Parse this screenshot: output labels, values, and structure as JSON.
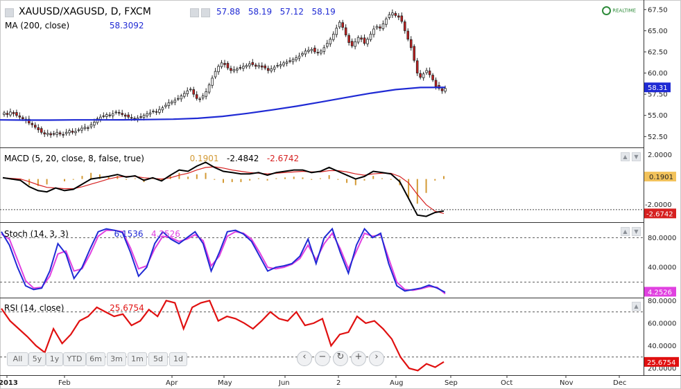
{
  "header": {
    "symbol": "XAUUSD/XAGUSD, D, FXCM",
    "ohlc": [
      "57.88",
      "58.19",
      "57.12",
      "58.19"
    ],
    "ma_label": "MA (200, close)",
    "ma_value": "58.3092",
    "realtime": "REALTIME"
  },
  "macd": {
    "label": "MACD (5, 20, close, 8, false, true)",
    "hist": "0.1901",
    "macd": "-2.4842",
    "signal": "-2.6742"
  },
  "stoch": {
    "label": "Stoch (14, 3, 3)",
    "k": "6.1536",
    "d": "4.2526"
  },
  "rsi": {
    "label": "RSI (14, close)",
    "value": "25.6754"
  },
  "range_buttons": [
    "All",
    "5y",
    "1y",
    "YTD",
    "6m",
    "3m",
    "1m",
    "5d",
    "1d"
  ],
  "nav_buttons": [
    "‹",
    "−",
    "↻",
    "+",
    "›"
  ],
  "colors": {
    "candle_up": "#ffffff",
    "candle_down": "#cc2020",
    "ma": "#1f2ad4",
    "macd": "#000000",
    "signal": "#d62020",
    "hist": "#d39a35",
    "stoch_k": "#1f2ad4",
    "stoch_d": "#e040e0",
    "rsi": "#e01010"
  },
  "chart_data": {
    "type": "candlestick",
    "price_axis": {
      "ticks": [
        "67.50",
        "65.00",
        "62.50",
        "60.00",
        "57.50",
        "55.00",
        "52.50"
      ],
      "ylim": [
        51.3,
        68.3
      ],
      "last_label": "58.31"
    },
    "x_axis": {
      "labels": [
        "2013",
        "Feb",
        "Apr",
        "May",
        "Jun",
        "2",
        "Aug",
        "Sep",
        "Oct",
        "Nov",
        "Dec"
      ]
    },
    "close": [
      55.3,
      55.1,
      55.4,
      55.2,
      55.0,
      54.8,
      54.6,
      54.4,
      54.1,
      53.9,
      53.6,
      53.3,
      53.0,
      52.8,
      52.9,
      52.7,
      52.8,
      53.0,
      52.8,
      52.7,
      53.0,
      53.2,
      53.0,
      53.1,
      53.3,
      53.5,
      53.6,
      53.5,
      53.9,
      54.2,
      54.6,
      54.8,
      54.9,
      55.1,
      55.0,
      55.2,
      55.4,
      55.3,
      55.1,
      54.9,
      54.8,
      54.7,
      54.6,
      54.7,
      54.8,
      55.0,
      55.2,
      55.3,
      55.5,
      55.4,
      55.7,
      55.9,
      56.2,
      56.5,
      56.6,
      56.8,
      57.0,
      57.3,
      57.6,
      57.9,
      58.1,
      57.5,
      57.0,
      56.9,
      57.3,
      57.8,
      58.6,
      59.4,
      60.2,
      60.8,
      61.2,
      61.0,
      60.6,
      60.3,
      60.4,
      60.5,
      60.6,
      60.8,
      60.9,
      61.1,
      61.0,
      60.8,
      60.9,
      60.7,
      60.6,
      60.3,
      60.5,
      60.7,
      60.9,
      61.0,
      61.2,
      61.3,
      61.4,
      61.6,
      61.8,
      62.0,
      62.3,
      62.6,
      62.7,
      62.8,
      62.5,
      62.4,
      62.6,
      63.0,
      63.5,
      64.0,
      64.6,
      65.3,
      66.0,
      65.4,
      64.5,
      63.6,
      63.2,
      63.7,
      64.2,
      64.0,
      63.5,
      64.0,
      64.6,
      65.2,
      65.5,
      65.3,
      65.8,
      66.4,
      66.9,
      67.1,
      66.8,
      66.6,
      66.1,
      65.0,
      64.0,
      63.0,
      61.5,
      60.0,
      59.5,
      59.9,
      60.3,
      59.8,
      59.2,
      58.4,
      58.2,
      57.9,
      58.19
    ],
    "ma_200": [
      54.47,
      54.45,
      54.45,
      54.47,
      54.47,
      54.48,
      54.51,
      54.55,
      54.66,
      54.89,
      55.24,
      55.65,
      56.09,
      56.6,
      57.12,
      57.63,
      58.05,
      58.3,
      58.31
    ],
    "macd": [
      0.1,
      0.0,
      -0.1,
      -0.6,
      -0.9,
      -1.0,
      -0.7,
      -0.9,
      -0.8,
      -0.4,
      0.0,
      0.1,
      0.2,
      0.35,
      0.15,
      0.25,
      -0.1,
      0.1,
      -0.15,
      0.3,
      0.7,
      0.6,
      1.0,
      1.3,
      0.9,
      0.6,
      0.5,
      0.4,
      0.4,
      0.5,
      0.3,
      0.5,
      0.6,
      0.7,
      0.7,
      0.5,
      0.6,
      0.9,
      0.6,
      0.3,
      0.0,
      0.2,
      0.6,
      0.5,
      0.4,
      -0.2,
      -1.5,
      -2.8,
      -2.9,
      -2.6,
      -2.4842
    ],
    "signal": [
      0.1,
      0.05,
      0.0,
      -0.2,
      -0.45,
      -0.65,
      -0.7,
      -0.75,
      -0.75,
      -0.6,
      -0.4,
      -0.2,
      0.0,
      0.15,
      0.2,
      0.2,
      0.1,
      0.05,
      0.0,
      0.1,
      0.3,
      0.45,
      0.7,
      0.9,
      0.95,
      0.85,
      0.7,
      0.6,
      0.5,
      0.45,
      0.4,
      0.45,
      0.5,
      0.55,
      0.6,
      0.55,
      0.55,
      0.65,
      0.65,
      0.55,
      0.4,
      0.3,
      0.4,
      0.45,
      0.45,
      0.2,
      -0.3,
      -1.2,
      -2.0,
      -2.5,
      -2.6742
    ],
    "macd_ylim": [
      -3.3,
      2.4
    ],
    "stoch_k": [
      88,
      70,
      40,
      15,
      10,
      12,
      35,
      72,
      58,
      25,
      40,
      65,
      88,
      92,
      90,
      87,
      60,
      28,
      40,
      72,
      88,
      78,
      72,
      80,
      88,
      72,
      35,
      60,
      88,
      90,
      85,
      75,
      55,
      35,
      40,
      42,
      45,
      55,
      78,
      45,
      80,
      92,
      60,
      32,
      70,
      92,
      80,
      86,
      45,
      15,
      8,
      10,
      12,
      16,
      12,
      6.15
    ],
    "stoch_d": [
      85,
      78,
      50,
      22,
      12,
      13,
      28,
      58,
      62,
      35,
      38,
      58,
      82,
      90,
      90,
      88,
      66,
      38,
      42,
      65,
      82,
      80,
      75,
      78,
      84,
      76,
      42,
      55,
      82,
      88,
      86,
      78,
      60,
      40,
      38,
      40,
      44,
      52,
      70,
      50,
      72,
      86,
      65,
      38,
      62,
      86,
      82,
      84,
      52,
      20,
      10,
      9,
      11,
      14,
      13,
      4.25
    ],
    "stoch_ticks": [
      "80.0000",
      "40.0000"
    ],
    "rsi": [
      73,
      62,
      55,
      48,
      40,
      34,
      55,
      42,
      50,
      62,
      66,
      74,
      70,
      66,
      68,
      58,
      62,
      72,
      66,
      80,
      78,
      55,
      74,
      78,
      80,
      62,
      66,
      64,
      60,
      55,
      62,
      70,
      64,
      62,
      70,
      58,
      60,
      64,
      40,
      50,
      52,
      66,
      60,
      62,
      55,
      46,
      30,
      20,
      18,
      24,
      21,
      25.68
    ],
    "rsi_ticks": [
      "80.0000",
      "60.0000",
      "40.0000",
      "20.0000"
    ]
  }
}
